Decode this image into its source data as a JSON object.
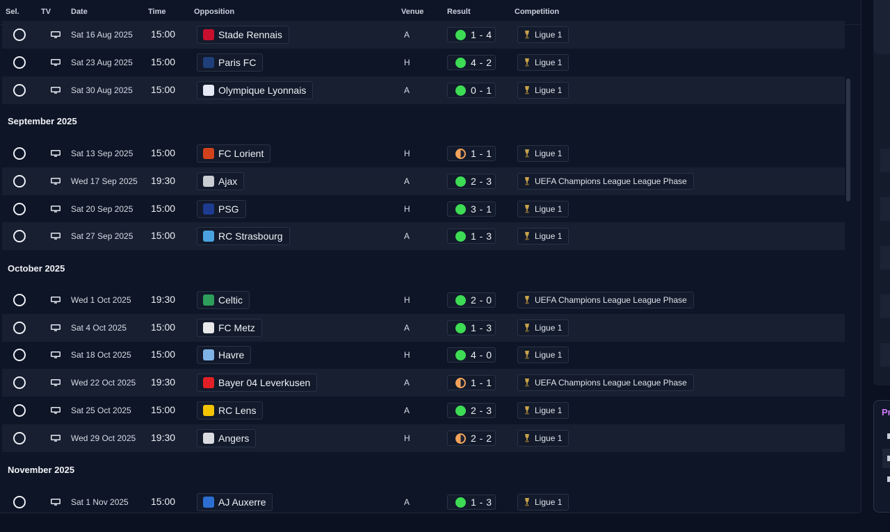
{
  "columns": {
    "sel": "Sel.",
    "tv": "TV",
    "date": "Date",
    "time": "Time",
    "opposition": "Opposition",
    "venue": "Venue",
    "result": "Result",
    "competition": "Competition"
  },
  "months": {
    "september": "September 2025",
    "october": "October 2025",
    "november": "November 2025"
  },
  "fixtures": [
    {
      "date": "Sat 16 Aug 2025",
      "time": "15:00",
      "opponent": "Stade Rennais",
      "venue": "A",
      "score": "1 - 4",
      "outcome": "win",
      "competition": "Ligue 1",
      "crest_color": "#c8102e"
    },
    {
      "date": "Sat 23 Aug 2025",
      "time": "15:00",
      "opponent": "Paris FC",
      "venue": "H",
      "score": "4 - 2",
      "outcome": "win",
      "competition": "Ligue 1",
      "crest_color": "#1f3f7a"
    },
    {
      "date": "Sat 30 Aug 2025",
      "time": "15:00",
      "opponent": "Olympique Lyonnais",
      "venue": "A",
      "score": "0 - 1",
      "outcome": "win",
      "competition": "Ligue 1",
      "crest_color": "#e5e8f5"
    },
    {
      "date": "Sat 13 Sep 2025",
      "time": "15:00",
      "opponent": "FC Lorient",
      "venue": "H",
      "score": "1 - 1",
      "outcome": "draw",
      "competition": "Ligue 1",
      "crest_color": "#d1421c"
    },
    {
      "date": "Wed 17 Sep 2025",
      "time": "19:30",
      "opponent": "Ajax",
      "venue": "A",
      "score": "2 - 3",
      "outcome": "win",
      "competition": "UEFA Champions League League Phase",
      "crest_color": "#c9ccd3"
    },
    {
      "date": "Sat 20 Sep 2025",
      "time": "15:00",
      "opponent": "PSG",
      "venue": "H",
      "score": "3 - 1",
      "outcome": "win",
      "competition": "Ligue 1",
      "crest_color": "#1d3b8f"
    },
    {
      "date": "Sat 27 Sep 2025",
      "time": "15:00",
      "opponent": "RC Strasbourg",
      "venue": "A",
      "score": "1 - 3",
      "outcome": "win",
      "competition": "Ligue 1",
      "crest_color": "#4aa3e0"
    },
    {
      "date": "Wed 1 Oct 2025",
      "time": "19:30",
      "opponent": "Celtic",
      "venue": "H",
      "score": "2 - 0",
      "outcome": "win",
      "competition": "UEFA Champions League League Phase",
      "crest_color": "#2e9e5b"
    },
    {
      "date": "Sat 4 Oct 2025",
      "time": "15:00",
      "opponent": "FC Metz",
      "venue": "A",
      "score": "1 - 3",
      "outcome": "win",
      "competition": "Ligue 1",
      "crest_color": "#e8e8ea"
    },
    {
      "date": "Sat 18 Oct 2025",
      "time": "15:00",
      "opponent": "Havre",
      "venue": "H",
      "score": "4 - 0",
      "outcome": "win",
      "competition": "Ligue 1",
      "crest_color": "#7fb3e6"
    },
    {
      "date": "Wed 22 Oct 2025",
      "time": "19:30",
      "opponent": "Bayer 04 Leverkusen",
      "venue": "A",
      "score": "1 - 1",
      "outcome": "draw",
      "competition": "UEFA Champions League League Phase",
      "crest_color": "#e21f26"
    },
    {
      "date": "Sat 25 Oct 2025",
      "time": "15:00",
      "opponent": "RC Lens",
      "venue": "A",
      "score": "2 - 3",
      "outcome": "win",
      "competition": "Ligue 1",
      "crest_color": "#f2c300"
    },
    {
      "date": "Wed 29 Oct 2025",
      "time": "19:30",
      "opponent": "Angers",
      "venue": "H",
      "score": "2 - 2",
      "outcome": "draw",
      "competition": "Ligue 1",
      "crest_color": "#d9dbe0"
    },
    {
      "date": "Sat 1 Nov 2025",
      "time": "15:00",
      "opponent": "AJ Auxerre",
      "venue": "A",
      "score": "1 - 3",
      "outcome": "win",
      "competition": "Ligue 1",
      "crest_color": "#2d6fd1"
    }
  ],
  "side_panel": {
    "title": "Pr"
  },
  "colors": {
    "win": "#3ddc54",
    "draw": "#f3a25a",
    "background": "#0e1526",
    "row_alt": "#171f31"
  }
}
